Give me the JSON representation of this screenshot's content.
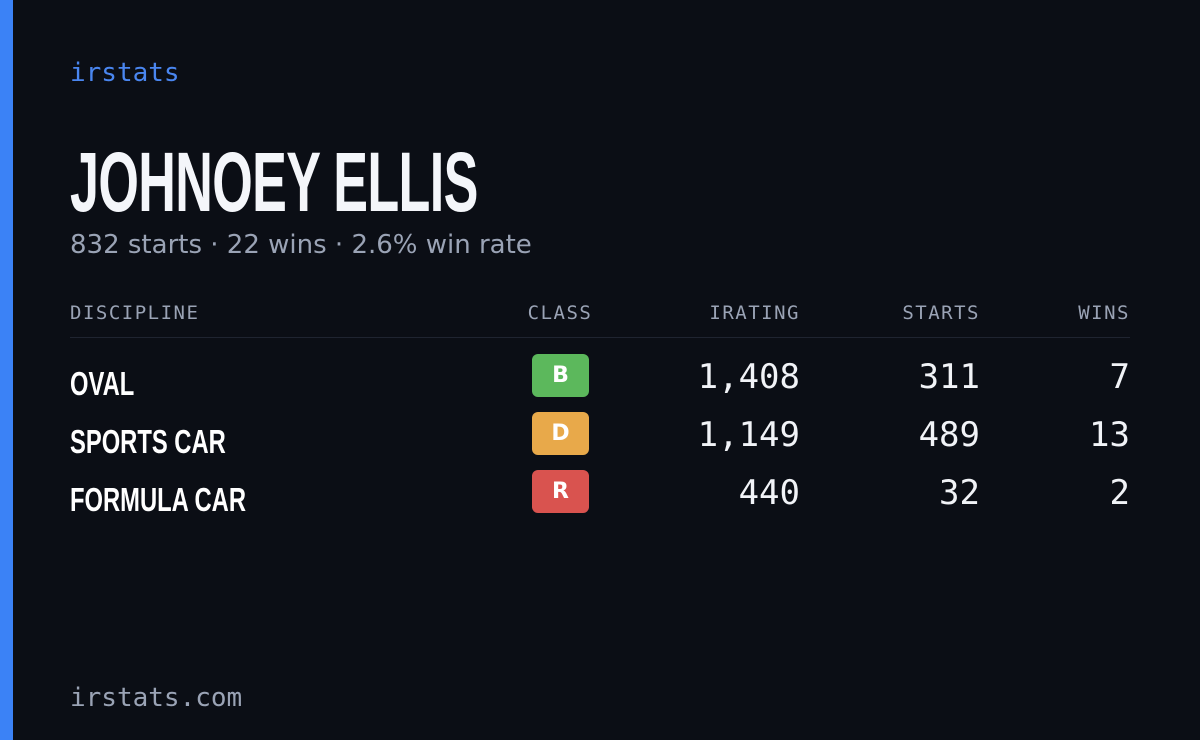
{
  "brand": "irstats",
  "driver": {
    "name": "JOHNOEY ELLIS",
    "summary": "832 starts · 22 wins · 2.6% win rate"
  },
  "table": {
    "headers": [
      "DISCIPLINE",
      "CLASS",
      "IRATING",
      "STARTS",
      "WINS"
    ],
    "rows": [
      {
        "discipline": "OVAL",
        "class": "B",
        "class_color": "#5cb85c",
        "irating": "1,408",
        "starts": "311",
        "wins": "7"
      },
      {
        "discipline": "SPORTS CAR",
        "class": "D",
        "class_color": "#e8a94a",
        "irating": "1,149",
        "starts": "489",
        "wins": "13"
      },
      {
        "discipline": "FORMULA CAR",
        "class": "R",
        "class_color": "#d9534f",
        "irating": "440",
        "starts": "32",
        "wins": "2"
      }
    ]
  },
  "footer": "irstats.com"
}
